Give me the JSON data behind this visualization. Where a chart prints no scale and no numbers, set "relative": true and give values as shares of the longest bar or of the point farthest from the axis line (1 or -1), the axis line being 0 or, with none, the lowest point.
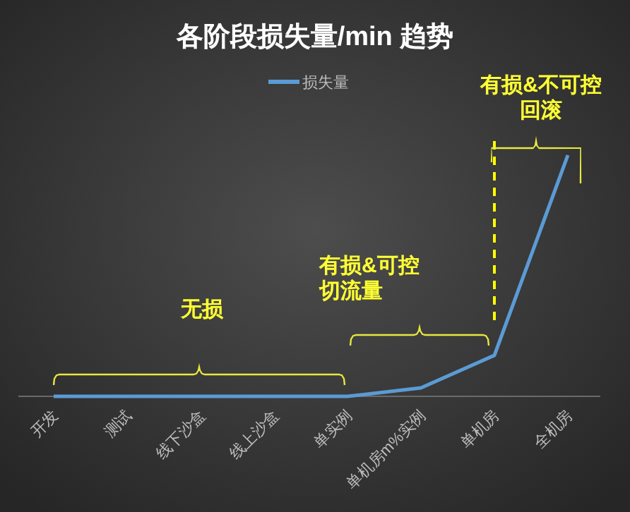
{
  "chart_data": {
    "type": "line",
    "title": "各阶段损失量/min 趋势",
    "relative": true,
    "categories": [
      "开发",
      "测试",
      "线下沙盒",
      "线上沙盒",
      "单实例",
      "单机房m%实例",
      "单机房",
      "全机房"
    ],
    "series": [
      {
        "name": "损失量",
        "color": "#5b9bd5",
        "values": [
          0,
          0,
          0,
          0,
          0,
          0.035,
          0.17,
          1
        ]
      }
    ],
    "legend": "top",
    "marker": "none",
    "line_style": "solid",
    "ref_lines": [
      {
        "axis": "x",
        "value": "单机房",
        "color": "#ffff00",
        "line_style": "dashed"
      }
    ],
    "annotations": [
      "无损",
      "有损&可控切流量",
      "有损&不可控回滚"
    ]
  }
}
